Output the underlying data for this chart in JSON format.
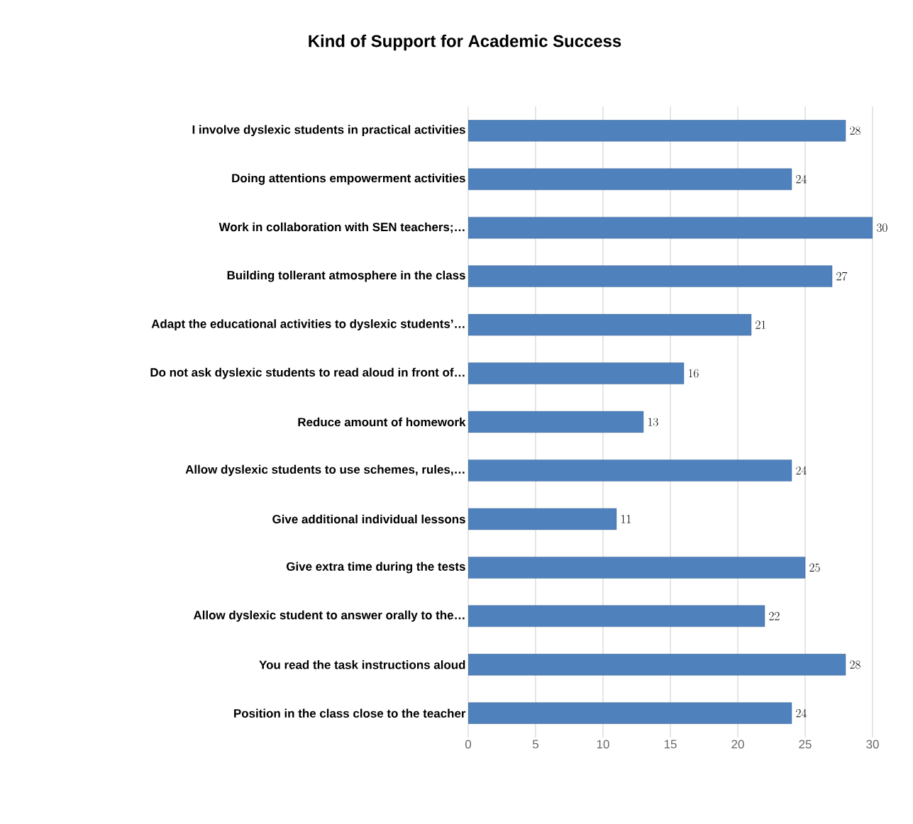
{
  "chart_data": {
    "type": "bar",
    "orientation": "horizontal",
    "title": "Kind of Support for Academic Success",
    "categories": [
      "I involve dyslexic students in practical activities",
      "Doing attentions empowerment activities",
      "Work in collaboration with SEN teachers;…",
      "Building tollerant atmosphere in the class",
      "Adapt the educational activities to dyslexic students’…",
      "Do not ask dyslexic students to read aloud in front of…",
      "Reduce amount of homework",
      "Allow dyslexic students to use schemes, rules,…",
      "Give additional individual lessons",
      "Give extra time during the tests",
      "Allow dyslexic student to answer orally to the…",
      "You read the task instructions aloud",
      "Position in the class close to the teacher"
    ],
    "values": [
      28,
      24,
      30,
      27,
      21,
      16,
      13,
      24,
      11,
      25,
      22,
      28,
      24
    ],
    "color": "#4f81bd",
    "xlim": [
      0,
      30
    ],
    "xticks": [
      0,
      5,
      10,
      15,
      20,
      25,
      30
    ],
    "grid": "x",
    "data_labels": true
  }
}
